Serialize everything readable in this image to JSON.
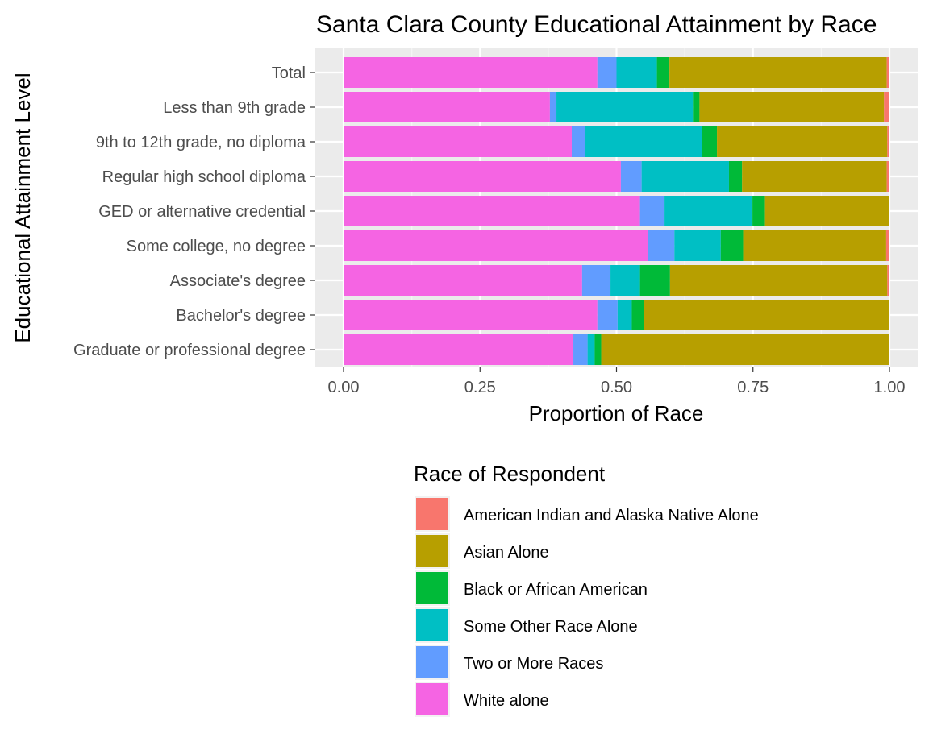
{
  "chart_data": {
    "type": "bar",
    "orientation": "horizontal",
    "stacked": "proportion",
    "title": "Santa Clara County Educational Attainment by Race",
    "xlabel": "Proportion of Race",
    "ylabel": "Educational Attainment Level",
    "xlim": [
      0,
      1
    ],
    "xticks": [
      "0.00",
      "0.25",
      "0.50",
      "0.75",
      "1.00"
    ],
    "grid": true,
    "legend_position": "bottom",
    "legend_title": "Race of Respondent",
    "categories": [
      "Total",
      "Less than 9th grade",
      "9th to 12th grade, no diploma",
      "Regular high school diploma",
      "GED or alternative credential",
      "Some college, no degree",
      "Associate's degree",
      "Bachelor's degree",
      "Graduate or professional degree"
    ],
    "series": [
      {
        "name": "White alone",
        "color": "#F564E3",
        "values": [
          0.465,
          0.378,
          0.418,
          0.508,
          0.543,
          0.558,
          0.437,
          0.465,
          0.421
        ]
      },
      {
        "name": "Two or More Races",
        "color": "#619CFF",
        "values": [
          0.035,
          0.012,
          0.025,
          0.038,
          0.045,
          0.048,
          0.052,
          0.037,
          0.026
        ]
      },
      {
        "name": "Some Other Race Alone",
        "color": "#00BFC4",
        "values": [
          0.074,
          0.25,
          0.213,
          0.16,
          0.161,
          0.085,
          0.054,
          0.026,
          0.013
        ]
      },
      {
        "name": "Black or African American",
        "color": "#00BA38",
        "values": [
          0.023,
          0.012,
          0.028,
          0.024,
          0.023,
          0.041,
          0.055,
          0.022,
          0.012
        ]
      },
      {
        "name": "Asian Alone",
        "color": "#B79F00",
        "values": [
          0.398,
          0.338,
          0.312,
          0.265,
          0.227,
          0.262,
          0.398,
          0.45,
          0.527
        ]
      },
      {
        "name": "American Indian and Alaska Native Alone",
        "color": "#F8766D",
        "values": [
          0.005,
          0.01,
          0.004,
          0.005,
          0.001,
          0.006,
          0.004,
          0.0,
          0.001
        ]
      }
    ],
    "legend_order": [
      "American Indian and Alaska Native Alone",
      "Asian Alone",
      "Black or African American",
      "Some Other Race Alone",
      "Two or More Races",
      "White alone"
    ]
  }
}
